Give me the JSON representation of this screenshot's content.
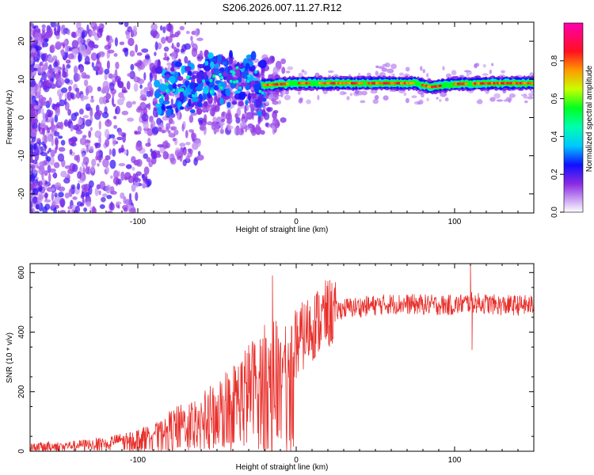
{
  "title": "S206.2026.007.11.27.R12",
  "chart_data": [
    {
      "type": "heatmap",
      "name": "spectrogram",
      "xlabel": "Height of straight line (km)",
      "ylabel": "Frequency (Hz)",
      "xlim": [
        -168,
        150
      ],
      "ylim": [
        -25,
        25
      ],
      "xticks": [
        -100,
        0,
        100
      ],
      "yticks": [
        -20,
        -10,
        0,
        10,
        20
      ],
      "colorbar": {
        "label": "Normalized spectral amplitude",
        "range": [
          0,
          1
        ],
        "ticks": [
          0.0,
          0.2,
          0.4,
          0.6,
          0.8
        ],
        "colors": [
          "#ffffff",
          "#d6b8f7",
          "#8a2be2",
          "#1010ff",
          "#00e5ff",
          "#00ff40",
          "#e6ff00",
          "#ff9900",
          "#ff0040",
          "#ff00aa"
        ]
      },
      "ridge": [
        {
          "x": -85,
          "y": 7.5
        },
        {
          "x": -60,
          "y": 9
        },
        {
          "x": -40,
          "y": 11
        },
        {
          "x": -20,
          "y": 8.5
        },
        {
          "x": 0,
          "y": 9
        },
        {
          "x": 25,
          "y": 9
        },
        {
          "x": 50,
          "y": 9
        },
        {
          "x": 75,
          "y": 9
        },
        {
          "x": 85,
          "y": 8
        },
        {
          "x": 100,
          "y": 8.8
        },
        {
          "x": 125,
          "y": 9
        },
        {
          "x": 150,
          "y": 9
        }
      ]
    },
    {
      "type": "line",
      "name": "snr",
      "xlabel": "Height of straight line (km)",
      "ylabel": "SNR (10 * v/v)",
      "xlim": [
        -168,
        150
      ],
      "ylim": [
        0,
        630
      ],
      "xticks": [
        -100,
        0,
        100
      ],
      "yticks": [
        0,
        200,
        400,
        600
      ],
      "color": "#e8302c",
      "envelope": {
        "x": [
          -168,
          -140,
          -120,
          -100,
          -80,
          -60,
          -40,
          -25,
          -15,
          -8,
          0,
          10,
          20,
          30,
          60,
          100,
          110,
          130,
          150
        ],
        "y": [
          15,
          20,
          30,
          50,
          80,
          110,
          170,
          230,
          260,
          290,
          360,
          420,
          460,
          480,
          495,
          490,
          500,
          490,
          490
        ]
      },
      "spikes": [
        {
          "x": -15,
          "y": 590
        },
        {
          "x": -12,
          "y": 420
        },
        {
          "x": 110,
          "y": 630
        },
        {
          "x": 111,
          "y": 340
        }
      ]
    }
  ]
}
